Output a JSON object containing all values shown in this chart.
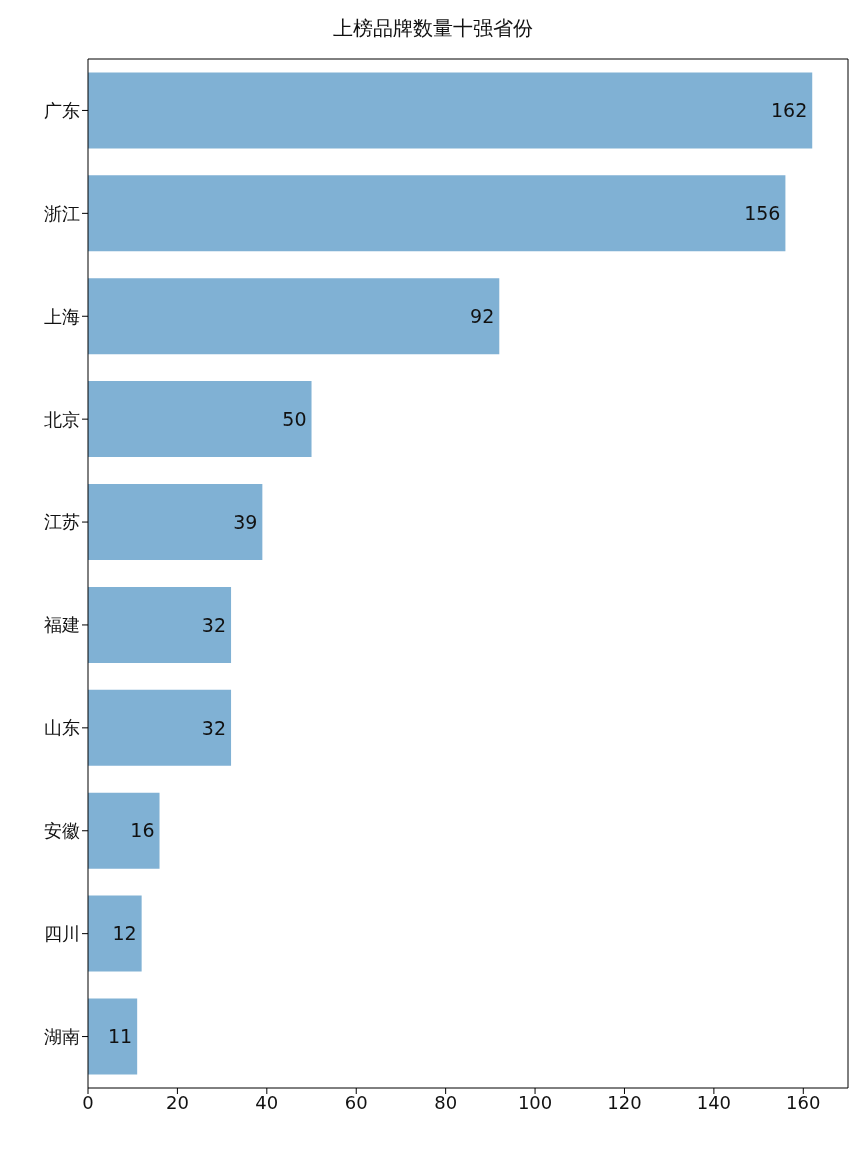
{
  "chart_data": {
    "type": "bar",
    "orientation": "horizontal",
    "title": "上榜品牌数量十强省份",
    "categories": [
      "广东",
      "浙江",
      "上海",
      "北京",
      "江苏",
      "福建",
      "山东",
      "安徽",
      "四川",
      "湖南"
    ],
    "values": [
      162,
      156,
      92,
      50,
      39,
      32,
      32,
      16,
      12,
      11
    ],
    "color": "#80b1d4",
    "xlim": [
      0,
      170
    ],
    "xticks": [
      0,
      20,
      40,
      60,
      80,
      100,
      120,
      140,
      160
    ],
    "data_labels": true,
    "grid": false
  }
}
